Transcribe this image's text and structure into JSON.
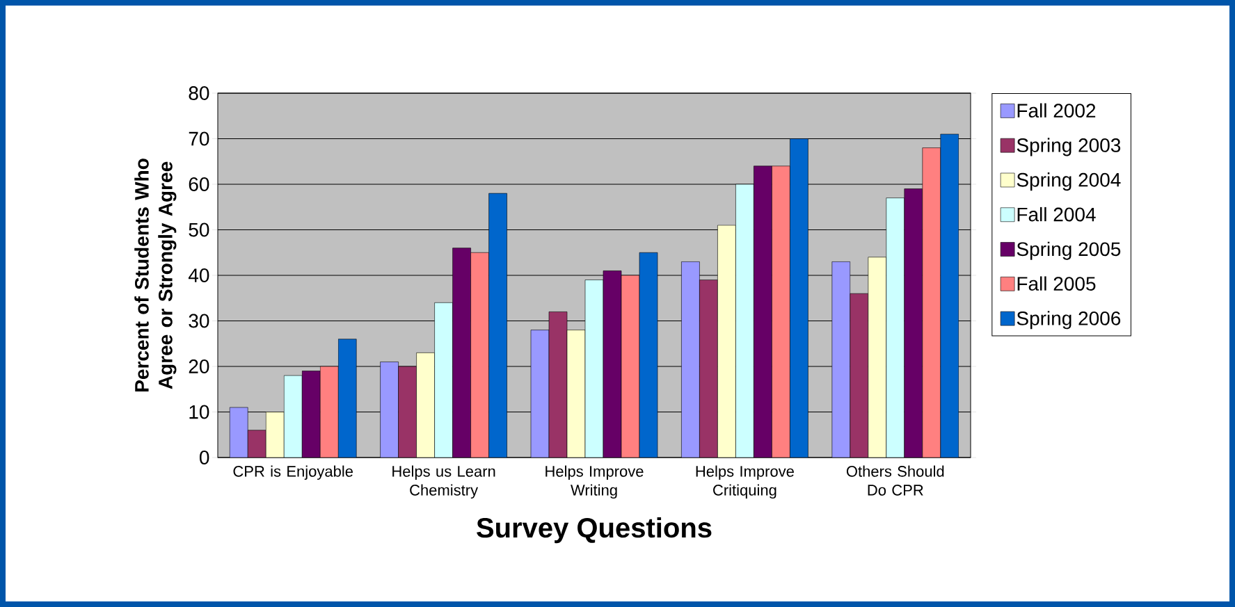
{
  "chart_data": {
    "type": "bar",
    "xlabel": "Survey Questions",
    "ylabel": "Percent of Students Who Agree or Strongly Agree",
    "categories": [
      "CPR is Enjoyable",
      "Helps us Learn Chemistry",
      "Helps Improve Writing",
      "Helps Improve Critiquing",
      "Others Should Do CPR"
    ],
    "series": [
      {
        "name": "Fall 2002",
        "color": "#9999ff",
        "values": [
          11,
          21,
          28,
          43,
          43
        ]
      },
      {
        "name": "Spring 2003",
        "color": "#993366",
        "values": [
          6,
          20,
          32,
          39,
          36
        ]
      },
      {
        "name": "Spring 2004",
        "color": "#ffffcc",
        "values": [
          10,
          23,
          28,
          51,
          44
        ]
      },
      {
        "name": "Fall 2004",
        "color": "#ccffff",
        "values": [
          18,
          34,
          39,
          60,
          57
        ]
      },
      {
        "name": "Spring 2005",
        "color": "#660066",
        "values": [
          19,
          46,
          41,
          64,
          59
        ]
      },
      {
        "name": "Fall 2005",
        "color": "#ff8080",
        "values": [
          20,
          45,
          40,
          64,
          68
        ]
      },
      {
        "name": "Spring 2006",
        "color": "#0066cc",
        "values": [
          26,
          58,
          45,
          70,
          71
        ]
      }
    ],
    "ylim": [
      0,
      80
    ],
    "yticks": [
      0,
      10,
      20,
      30,
      40,
      50,
      60,
      70,
      80
    ],
    "grid": "y",
    "legend": "right"
  }
}
